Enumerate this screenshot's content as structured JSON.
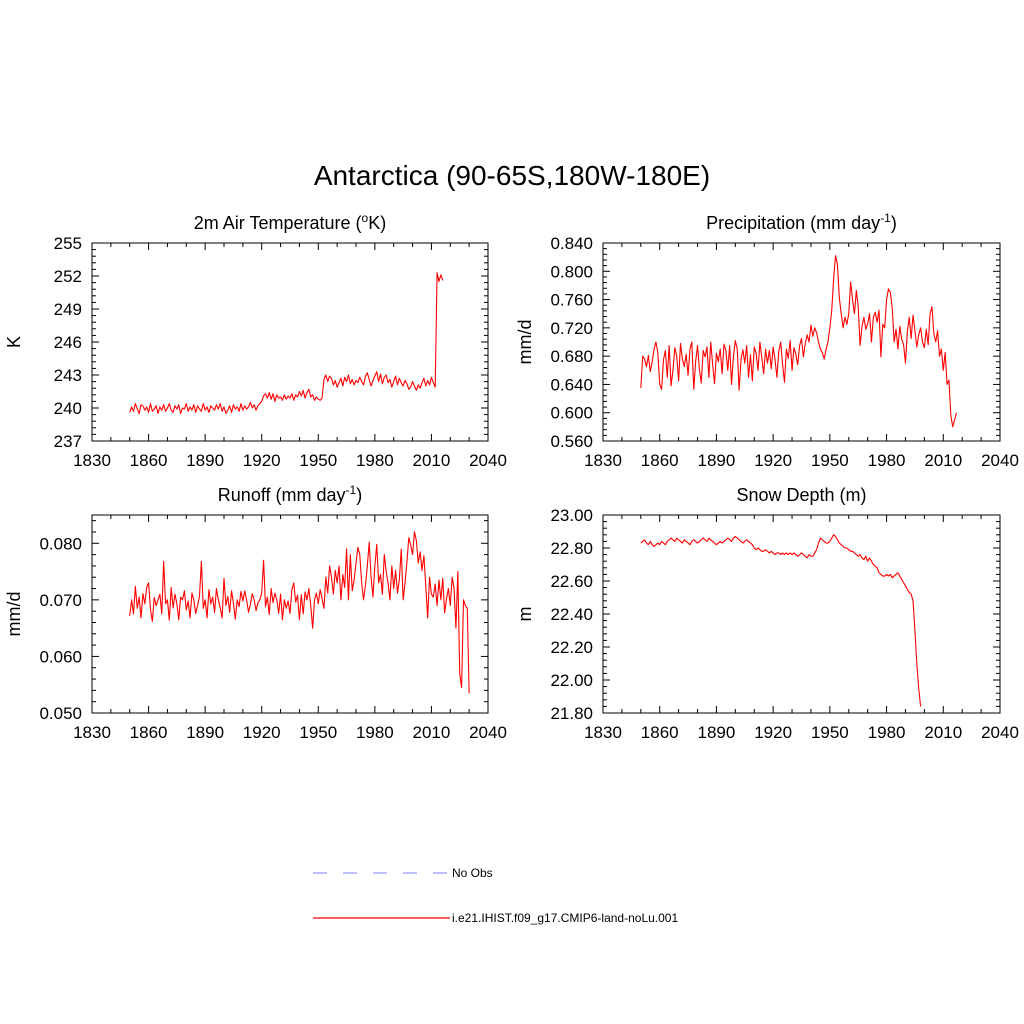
{
  "title": "Antarctica (90-65S,180W-180E)",
  "colors": {
    "model": "#ff0000",
    "obs": "#9999ff",
    "axis": "#000000"
  },
  "legend": {
    "obs_label": "No Obs",
    "model_label": "i.e21.IHIST.f09_g17.CMIP6-land-noLu.001"
  },
  "chart_data": [
    {
      "type": "line",
      "title": "2m Air Temperature (°K)",
      "title_main": "2m Air Temperature (",
      "title_sup": "o",
      "title_tail": "K)",
      "xlabel": "",
      "ylabel": "K",
      "xlim": [
        1830,
        2040
      ],
      "xticks": [
        "1830",
        "1860",
        "1890",
        "1920",
        "1950",
        "1980",
        "2010",
        "2040"
      ],
      "ylim": [
        237,
        255
      ],
      "yticks": [
        "237",
        "240",
        "243",
        "246",
        "249",
        "252",
        "255"
      ],
      "series": [
        {
          "x_start": 1850,
          "values": [
            239.6,
            240.1,
            239.7,
            240.4,
            239.9,
            239.5,
            240.3,
            240.2,
            239.8,
            240.1,
            239.6,
            240.4,
            239.7,
            239.9,
            240.2,
            239.5,
            240.1,
            239.8,
            240.3,
            239.7,
            240.0,
            240.4,
            239.8,
            239.6,
            240.2,
            239.9,
            240.3,
            239.5,
            240.0,
            239.9,
            240.4,
            239.7,
            240.1,
            239.8,
            240.3,
            239.6,
            240.2,
            239.9,
            239.7,
            240.4,
            239.8,
            240.1,
            239.6,
            240.2,
            240.0,
            239.8,
            240.3,
            239.9,
            240.4,
            239.7,
            240.1,
            239.5,
            239.8,
            240.2,
            239.6,
            240.3,
            239.9,
            240.1,
            239.7,
            240.4,
            239.8,
            240.2,
            239.9,
            240.1,
            240.5,
            240.0,
            240.3,
            239.8,
            240.2,
            240.4,
            240.6,
            241.1,
            241.3,
            240.9,
            241.4,
            240.8,
            241.3,
            240.6,
            241.2,
            240.9,
            241.0,
            240.7,
            241.2,
            240.8,
            241.1,
            240.9,
            241.3,
            240.7,
            241.2,
            241.0,
            241.5,
            241.1,
            241.6,
            240.9,
            241.4,
            241.7,
            241.0,
            241.2,
            240.7,
            241.0,
            240.8,
            240.7,
            240.9,
            242.6,
            243.0,
            242.4,
            242.9,
            242.7,
            242.1,
            242.5,
            241.9,
            242.3,
            242.7,
            242.0,
            242.8,
            242.4,
            243.0,
            242.2,
            242.6,
            242.1,
            242.5,
            242.3,
            242.8,
            242.4,
            242.1,
            242.9,
            243.2,
            242.6,
            242.0,
            242.5,
            242.9,
            243.3,
            242.4,
            243.1,
            242.2,
            242.8,
            243.0,
            242.3,
            242.6,
            241.9,
            242.4,
            242.9,
            242.1,
            242.7,
            242.3,
            242.0,
            242.5,
            242.2,
            241.7,
            241.9,
            242.4,
            242.0,
            241.6,
            242.1,
            241.8,
            242.3,
            242.7,
            242.0,
            242.5,
            242.1,
            242.8,
            242.3,
            241.9,
            252.3,
            251.5,
            252.1,
            251.6
          ]
        }
      ]
    },
    {
      "type": "line",
      "title": "Precipitation (mm day-1)",
      "title_main": "Precipitation (mm day",
      "title_sup": "-1",
      "title_tail": ")",
      "xlabel": "",
      "ylabel": "mm/d",
      "xlim": [
        1830,
        2040
      ],
      "xticks": [
        "1830",
        "1860",
        "1890",
        "1920",
        "1950",
        "1980",
        "2010",
        "2040"
      ],
      "ylim": [
        0.56,
        0.84
      ],
      "yticks": [
        "0.560",
        "0.600",
        "0.640",
        "0.680",
        "0.720",
        "0.760",
        "0.800",
        "0.840"
      ],
      "series": [
        {
          "x_start": 1850,
          "values": [
            0.635,
            0.68,
            0.676,
            0.665,
            0.681,
            0.658,
            0.672,
            0.69,
            0.7,
            0.685,
            0.64,
            0.633,
            0.675,
            0.688,
            0.65,
            0.695,
            0.638,
            0.66,
            0.692,
            0.68,
            0.645,
            0.698,
            0.676,
            0.665,
            0.683,
            0.653,
            0.69,
            0.7,
            0.633,
            0.672,
            0.695,
            0.661,
            0.642,
            0.688,
            0.679,
            0.693,
            0.65,
            0.7,
            0.668,
            0.641,
            0.684,
            0.672,
            0.69,
            0.655,
            0.697,
            0.688,
            0.66,
            0.695,
            0.64,
            0.68,
            0.702,
            0.69,
            0.632,
            0.675,
            0.689,
            0.67,
            0.695,
            0.65,
            0.682,
            0.645,
            0.693,
            0.684,
            0.66,
            0.7,
            0.678,
            0.655,
            0.69,
            0.67,
            0.688,
            0.662,
            0.693,
            0.675,
            0.65,
            0.687,
            0.7,
            0.668,
            0.643,
            0.69,
            0.677,
            0.702,
            0.66,
            0.692,
            0.683,
            0.668,
            0.695,
            0.705,
            0.679,
            0.698,
            0.71,
            0.7,
            0.724,
            0.708,
            0.72,
            0.713,
            0.7,
            0.69,
            0.685,
            0.676,
            0.69,
            0.7,
            0.72,
            0.745,
            0.79,
            0.822,
            0.81,
            0.763,
            0.74,
            0.72,
            0.735,
            0.725,
            0.74,
            0.785,
            0.76,
            0.74,
            0.773,
            0.75,
            0.695,
            0.722,
            0.735,
            0.718,
            0.726,
            0.74,
            0.7,
            0.735,
            0.742,
            0.728,
            0.745,
            0.679,
            0.725,
            0.72,
            0.76,
            0.775,
            0.77,
            0.748,
            0.7,
            0.718,
            0.69,
            0.722,
            0.704,
            0.696,
            0.67,
            0.715,
            0.735,
            0.705,
            0.738,
            0.716,
            0.693,
            0.71,
            0.72,
            0.7,
            0.692,
            0.718,
            0.696,
            0.74,
            0.75,
            0.712,
            0.7,
            0.716,
            0.68,
            0.69,
            0.66,
            0.685,
            0.64,
            0.646,
            0.596,
            0.58,
            0.59,
            0.6
          ]
        }
      ]
    },
    {
      "type": "line",
      "title": "Runoff (mm day-1)",
      "title_main": "Runoff (mm day",
      "title_sup": "-1",
      "title_tail": ")",
      "xlabel": "",
      "ylabel": "mm/d",
      "xlim": [
        1830,
        2040
      ],
      "xticks": [
        "1830",
        "1860",
        "1890",
        "1920",
        "1950",
        "1980",
        "2010",
        "2040"
      ],
      "ylim": [
        0.05,
        0.085
      ],
      "yticks": [
        "0.050",
        "0.060",
        "0.070",
        "0.080"
      ],
      "series": [
        {
          "x_start": 1850,
          "values": [
            0.0672,
            0.07,
            0.0675,
            0.0724,
            0.0685,
            0.0705,
            0.0668,
            0.0711,
            0.0693,
            0.0722,
            0.073,
            0.0683,
            0.0662,
            0.0704,
            0.069,
            0.07,
            0.071,
            0.0675,
            0.0768,
            0.0693,
            0.07,
            0.0664,
            0.0722,
            0.0686,
            0.071,
            0.0693,
            0.0665,
            0.0705,
            0.07,
            0.0716,
            0.0682,
            0.0698,
            0.0668,
            0.0712,
            0.07,
            0.0676,
            0.069,
            0.0706,
            0.0768,
            0.0685,
            0.07,
            0.0668,
            0.0718,
            0.0693,
            0.0705,
            0.0678,
            0.072,
            0.07,
            0.0686,
            0.0668,
            0.0738,
            0.069,
            0.0706,
            0.0678,
            0.0716,
            0.0694,
            0.0666,
            0.07,
            0.0688,
            0.0715,
            0.0698,
            0.0716,
            0.07,
            0.0678,
            0.0692,
            0.0711,
            0.07,
            0.0681,
            0.0695,
            0.07,
            0.0712,
            0.077,
            0.0688,
            0.0705,
            0.0674,
            0.072,
            0.0695,
            0.0712,
            0.07,
            0.0676,
            0.071,
            0.0665,
            0.07,
            0.0685,
            0.0698,
            0.0676,
            0.0718,
            0.073,
            0.0696,
            0.0708,
            0.0665,
            0.0709,
            0.0675,
            0.0714,
            0.07,
            0.072,
            0.069,
            0.065,
            0.07,
            0.0712,
            0.0693,
            0.0718,
            0.0702,
            0.0685,
            0.074,
            0.0712,
            0.076,
            0.074,
            0.071,
            0.0752,
            0.073,
            0.076,
            0.07,
            0.0745,
            0.0722,
            0.079,
            0.07,
            0.078,
            0.0716,
            0.0735,
            0.0765,
            0.0793,
            0.078,
            0.073,
            0.07,
            0.0725,
            0.076,
            0.0802,
            0.074,
            0.0705,
            0.076,
            0.0798,
            0.073,
            0.0745,
            0.071,
            0.078,
            0.075,
            0.073,
            0.07,
            0.076,
            0.072,
            0.0752,
            0.0712,
            0.0736,
            0.079,
            0.07,
            0.073,
            0.0767,
            0.081,
            0.0797,
            0.078,
            0.082,
            0.0805,
            0.0765,
            0.0785,
            0.0752,
            0.0778,
            0.0725,
            0.0668,
            0.074,
            0.071,
            0.0705,
            0.0728,
            0.069,
            0.0735,
            0.07,
            0.0738,
            0.0677,
            0.0702,
            0.072,
            0.069,
            0.074,
            0.072,
            0.065,
            0.075,
            0.057,
            0.0545,
            0.07,
            0.069,
            0.0685,
            0.0535
          ]
        }
      ]
    },
    {
      "type": "line",
      "title": "Snow Depth (m)",
      "title_main": "Snow Depth (m)",
      "title_sup": "",
      "title_tail": "",
      "xlabel": "",
      "ylabel": "m",
      "xlim": [
        1830,
        2040
      ],
      "xticks": [
        "1830",
        "1860",
        "1890",
        "1920",
        "1950",
        "1980",
        "2010",
        "2040"
      ],
      "ylim": [
        21.8,
        23.0
      ],
      "yticks": [
        "21.80",
        "22.00",
        "22.20",
        "22.40",
        "22.60",
        "22.80",
        "23.00"
      ],
      "series": [
        {
          "x_start": 1850,
          "values": [
            22.83,
            22.84,
            22.85,
            22.83,
            22.82,
            22.84,
            22.82,
            22.81,
            22.82,
            22.83,
            22.82,
            22.84,
            22.83,
            22.82,
            22.84,
            22.85,
            22.86,
            22.85,
            22.84,
            22.86,
            22.85,
            22.84,
            22.83,
            22.85,
            22.84,
            22.83,
            22.82,
            22.84,
            22.85,
            22.84,
            22.83,
            22.84,
            22.85,
            22.86,
            22.85,
            22.84,
            22.86,
            22.85,
            22.84,
            22.83,
            22.82,
            22.83,
            22.84,
            22.83,
            22.84,
            22.85,
            22.86,
            22.85,
            22.84,
            22.86,
            22.87,
            22.86,
            22.85,
            22.84,
            22.83,
            22.84,
            22.85,
            22.84,
            22.83,
            22.82,
            22.8,
            22.79,
            22.8,
            22.79,
            22.78,
            22.78,
            22.79,
            22.78,
            22.77,
            22.78,
            22.77,
            22.76,
            22.77,
            22.77,
            22.76,
            22.77,
            22.76,
            22.77,
            22.76,
            22.77,
            22.76,
            22.77,
            22.76,
            22.75,
            22.76,
            22.77,
            22.76,
            22.75,
            22.74,
            22.76,
            22.75,
            22.75,
            22.77,
            22.79,
            22.83,
            22.86,
            22.85,
            22.84,
            22.83,
            22.83,
            22.84,
            22.86,
            22.88,
            22.87,
            22.85,
            22.83,
            22.82,
            22.81,
            22.8,
            22.8,
            22.79,
            22.78,
            22.78,
            22.77,
            22.76,
            22.75,
            22.76,
            22.74,
            22.73,
            22.75,
            22.72,
            22.74,
            22.72,
            22.7,
            22.69,
            22.68,
            22.65,
            22.64,
            22.63,
            22.63,
            22.64,
            22.63,
            22.64,
            22.62,
            22.63,
            22.64,
            22.65,
            22.63,
            22.61,
            22.59,
            22.57,
            22.55,
            22.53,
            22.52,
            22.48,
            22.3,
            22.1,
            21.95,
            21.84
          ]
        }
      ]
    }
  ]
}
